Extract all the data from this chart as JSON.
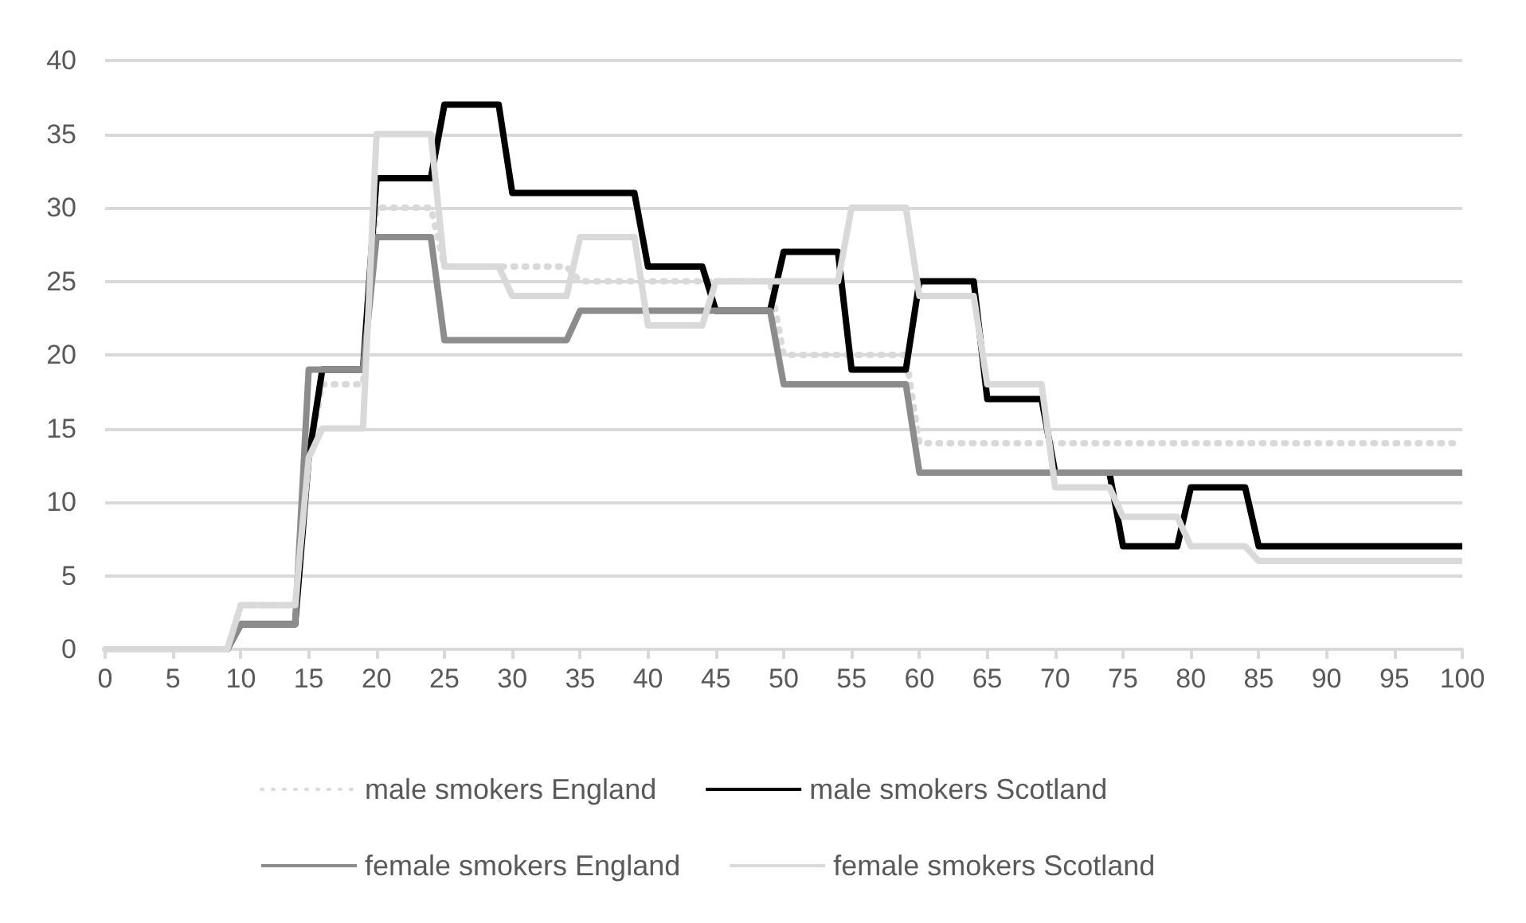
{
  "chart_data": {
    "type": "line",
    "xlim": [
      0,
      100
    ],
    "xticks": [
      0,
      5,
      10,
      15,
      20,
      25,
      30,
      35,
      40,
      45,
      50,
      55,
      60,
      65,
      70,
      75,
      80,
      85,
      90,
      95,
      100
    ],
    "ylim": [
      0,
      40
    ],
    "yticks": [
      0,
      5,
      10,
      15,
      20,
      25,
      30,
      35,
      40
    ],
    "grid": "y",
    "legend": "bottom",
    "marker": "none",
    "series": [
      {
        "name": "male smokers England",
        "color": "#d9d9d9",
        "line_style": "dotted",
        "x": [
          0,
          9,
          10,
          14,
          15,
          16,
          19,
          20,
          24,
          25,
          34,
          35,
          49,
          50,
          59,
          60,
          100
        ],
        "values": [
          0,
          0,
          3,
          3,
          13,
          18,
          18,
          30,
          30,
          26,
          26,
          25,
          25,
          20,
          20,
          14,
          14
        ]
      },
      {
        "name": "male smokers Scotland",
        "color": "#000000",
        "line_style": "solid",
        "x": [
          0,
          9,
          10,
          14,
          15,
          16,
          19,
          20,
          24,
          25,
          29,
          30,
          39,
          40,
          44,
          45,
          49,
          50,
          54,
          55,
          59,
          60,
          64,
          65,
          69,
          70,
          74,
          75,
          79,
          80,
          84,
          85,
          100
        ],
        "values": [
          0,
          0,
          1.7,
          1.7,
          13,
          19,
          19,
          32,
          32,
          37,
          37,
          31,
          31,
          26,
          26,
          23,
          23,
          27,
          27,
          19,
          19,
          25,
          25,
          17,
          17,
          12,
          12,
          7,
          7,
          11,
          11,
          7,
          7
        ]
      },
      {
        "name": "female smokers England",
        "color": "#8c8c8c",
        "line_style": "solid",
        "x": [
          0,
          9,
          10,
          14,
          15,
          19,
          20,
          24,
          25,
          34,
          35,
          49,
          50,
          59,
          60,
          100
        ],
        "values": [
          0,
          0,
          1.7,
          1.7,
          19,
          19,
          28,
          28,
          21,
          21,
          23,
          23,
          18,
          18,
          12,
          12
        ]
      },
      {
        "name": "female smokers Scotland",
        "color": "#d9d9d9",
        "line_style": "solid",
        "x": [
          0,
          9,
          10,
          14,
          15,
          16,
          19,
          20,
          24,
          25,
          29,
          30,
          34,
          35,
          39,
          40,
          44,
          45,
          54,
          55,
          59,
          60,
          64,
          65,
          69,
          70,
          74,
          75,
          79,
          80,
          84,
          85,
          100
        ],
        "values": [
          0,
          0,
          3,
          3,
          13,
          15,
          15,
          35,
          35,
          26,
          26,
          24,
          24,
          28,
          28,
          22,
          22,
          25,
          25,
          30,
          30,
          24,
          24,
          18,
          18,
          11,
          11,
          9,
          9,
          7,
          7,
          6,
          6
        ]
      }
    ]
  }
}
